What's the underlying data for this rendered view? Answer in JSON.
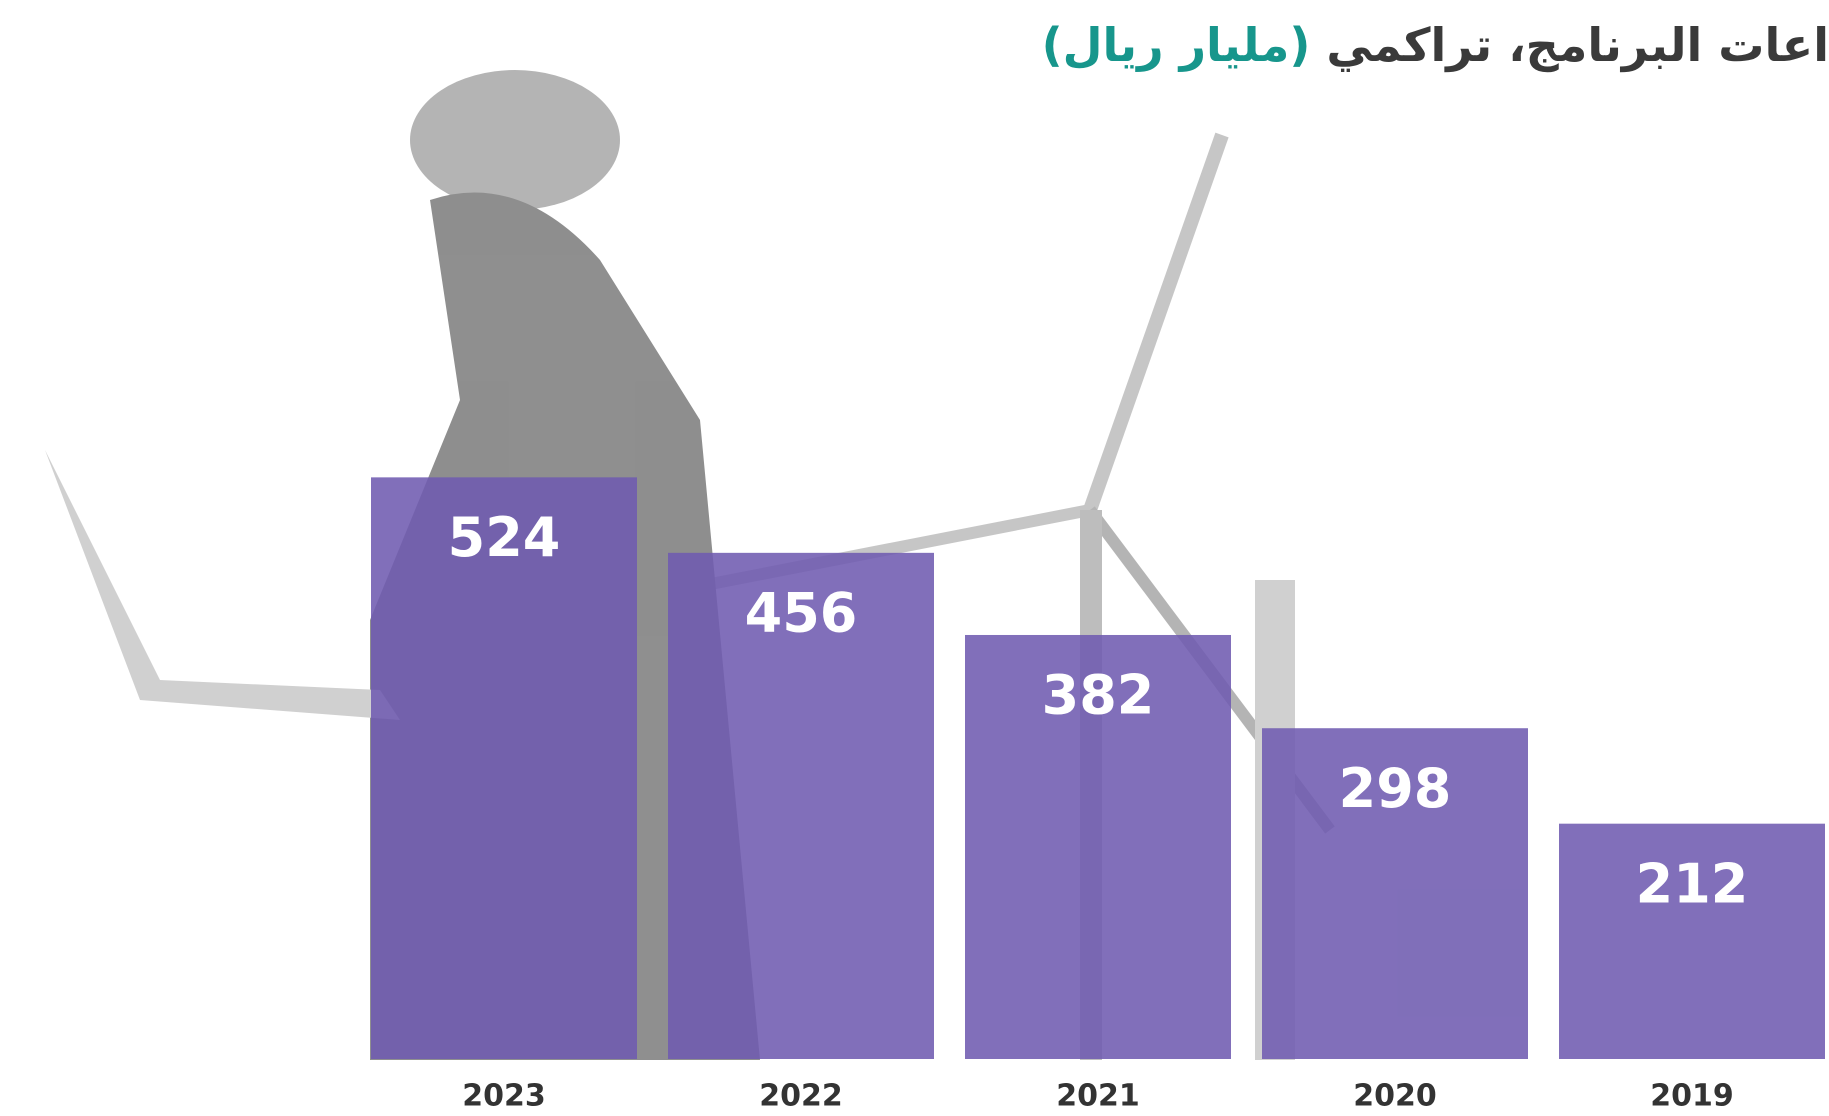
{
  "chart_data": {
    "type": "bar",
    "title": "اعات البرنامج، تراكمي",
    "unit": "(مليار ريال)",
    "categories": [
      "2023",
      "2022",
      "2021",
      "2020",
      "2019"
    ],
    "values": [
      524,
      456,
      382,
      298,
      212
    ],
    "color": "#6f5bb0",
    "title_color": "#3a3a3a",
    "unit_color": "#17968c"
  }
}
